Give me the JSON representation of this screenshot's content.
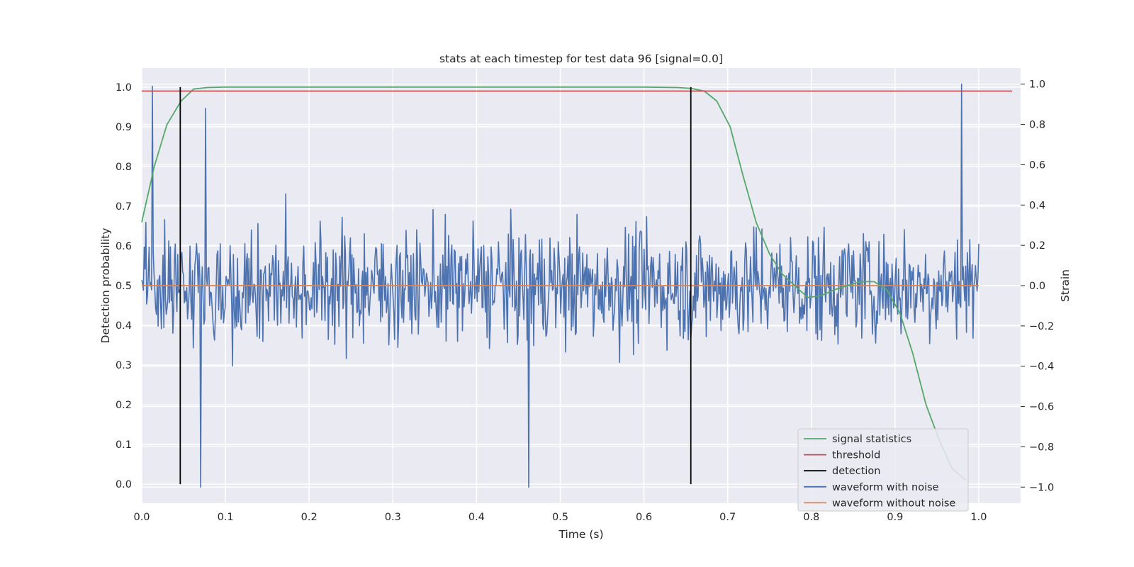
{
  "chart_data": {
    "type": "line",
    "title": "stats at each timestep for test data 96 [signal=0.0]",
    "xlabel": "Time (s)",
    "ylabel": "Detection probability",
    "ylabel_right": "Strain",
    "xlim": [
      0.0,
      1.05
    ],
    "ylim": [
      -0.048,
      1.048
    ],
    "ylim_right": [
      -1.08,
      1.08
    ],
    "x_ticks": [
      "0.0",
      "0.1",
      "0.2",
      "0.3",
      "0.4",
      "0.5",
      "0.6",
      "0.7",
      "0.8",
      "0.9",
      "1.0"
    ],
    "y_ticks": [
      "0.0",
      "0.1",
      "0.2",
      "0.3",
      "0.4",
      "0.5",
      "0.6",
      "0.7",
      "0.8",
      "0.9",
      "1.0"
    ],
    "y_ticks_right": [
      "−1.0",
      "−0.8",
      "−0.6",
      "−0.4",
      "−0.2",
      "0.0",
      "0.2",
      "0.4",
      "0.6",
      "0.8",
      "1.0"
    ],
    "grid": true,
    "legend_position": "lower-right",
    "series": [
      {
        "name": "signal statistics",
        "color": "#55a868",
        "axis": "left",
        "x": [
          0.0,
          0.015,
          0.03,
          0.047,
          0.062,
          0.078,
          0.1,
          0.2,
          0.3,
          0.4,
          0.5,
          0.6,
          0.64,
          0.656,
          0.672,
          0.687,
          0.703,
          0.718,
          0.734,
          0.75,
          0.765,
          0.78,
          0.796,
          0.812,
          0.828,
          0.843,
          0.859,
          0.875,
          0.89,
          0.906,
          0.921,
          0.937,
          0.953,
          0.968,
          0.984
        ],
        "y": [
          0.66,
          0.8,
          0.905,
          0.965,
          0.995,
          0.999,
          1.0,
          1.0,
          1.0,
          1.0,
          1.0,
          1.0,
          0.999,
          0.997,
          0.99,
          0.965,
          0.9,
          0.78,
          0.66,
          0.58,
          0.53,
          0.5,
          0.47,
          0.475,
          0.49,
          0.5,
          0.51,
          0.51,
          0.49,
          0.43,
          0.33,
          0.2,
          0.11,
          0.04,
          0.01
        ]
      },
      {
        "name": "threshold",
        "color": "#c44e52",
        "axis": "left",
        "x": [
          0.0,
          1.04
        ],
        "y": [
          0.99,
          0.99
        ]
      },
      {
        "name": "detection",
        "color": "#000000",
        "axis": "left",
        "segments": [
          {
            "x": 0.046,
            "y": [
              0.0,
              1.0
            ]
          },
          {
            "x": 0.656,
            "y": [
              0.0,
              1.0
            ]
          }
        ]
      },
      {
        "name": "waveform with noise",
        "color": "#4c72b0",
        "axis": "right",
        "x_range": [
          0.0,
          1.0
        ],
        "n_points": 1024,
        "y_range": [
          -1.0,
          1.0
        ],
        "notable_points": [
          {
            "x": 0.013,
            "y": 0.99
          },
          {
            "x": 0.07,
            "y": -1.0
          },
          {
            "x": 0.076,
            "y": 0.88
          },
          {
            "x": 0.462,
            "y": -1.0
          },
          {
            "x": 0.979,
            "y": 1.0
          }
        ]
      },
      {
        "name": "waveform without noise",
        "color": "#dd8452",
        "axis": "right",
        "x": [
          0.0,
          1.0
        ],
        "y": [
          0.0,
          0.0
        ]
      }
    ]
  }
}
